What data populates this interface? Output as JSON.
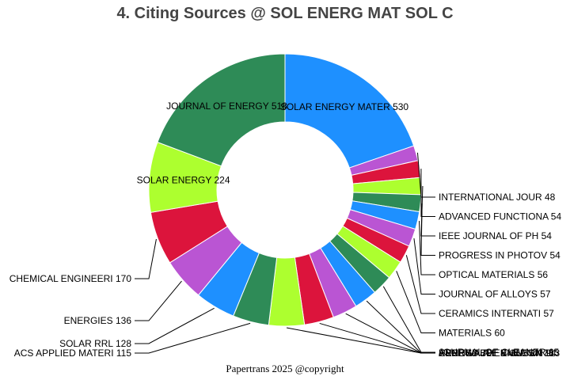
{
  "title": "4. Citing Sources @ SOL ENERG MAT SOL C",
  "footer": "Papertrans 2025 @copyright",
  "chart_data": {
    "type": "pie",
    "donut": true,
    "title": "4. Citing Sources @ SOL ENERG MAT SOL C",
    "slices": [
      {
        "label": "SOLAR ENERGY MATER",
        "value": 530,
        "color": "#1e90ff"
      },
      {
        "label": "INTERNATIONAL JOUR",
        "value": 48,
        "color": "#ba55d3"
      },
      {
        "label": "ADVANCED FUNCTIONA",
        "value": 54,
        "color": "#dc143c"
      },
      {
        "label": "IEEE JOURNAL OF PH",
        "value": 54,
        "color": "#adff2f"
      },
      {
        "label": "PROGRESS IN PHOTOV",
        "value": 54,
        "color": "#2e8b57"
      },
      {
        "label": "OPTICAL MATERIALS",
        "value": 56,
        "color": "#1e90ff"
      },
      {
        "label": "JOURNAL OF ALLOYS ",
        "value": 57,
        "color": "#ba55d3"
      },
      {
        "label": "CERAMICS INTERNATI",
        "value": 57,
        "color": "#dc143c"
      },
      {
        "label": "MATERIALS",
        "value": 60,
        "color": "#adff2f"
      },
      {
        "label": "JOURNAL OF CLEANER",
        "value": 65,
        "color": "#2e8b57"
      },
      {
        "label": "RENEWABLE ENERGY",
        "value": 73,
        "color": "#1e90ff"
      },
      {
        "label": "ENERGY",
        "value": 79,
        "color": "#ba55d3"
      },
      {
        "label": "RENEWABLE & SUSTAI",
        "value": 94,
        "color": "#dc143c"
      },
      {
        "label": "APPLIED THERMAL EN",
        "value": 113,
        "color": "#adff2f"
      },
      {
        "label": "ACS APPLIED MATERI",
        "value": 115,
        "color": "#2e8b57"
      },
      {
        "label": "SOLAR RRL",
        "value": 128,
        "color": "#1e90ff"
      },
      {
        "label": "ENERGIES",
        "value": 136,
        "color": "#ba55d3"
      },
      {
        "label": "CHEMICAL ENGINEERI",
        "value": 170,
        "color": "#dc143c"
      },
      {
        "label": "SOLAR ENERGY",
        "value": 224,
        "color": "#adff2f"
      },
      {
        "label": "JOURNAL OF ENERGY ",
        "value": 518,
        "color": "#2e8b57"
      }
    ]
  }
}
